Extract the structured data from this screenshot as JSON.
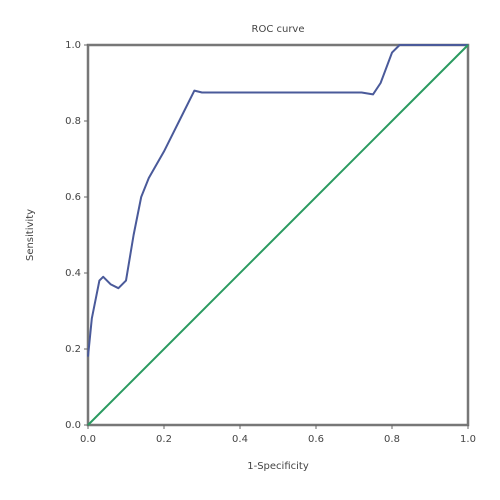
{
  "chart_data": {
    "type": "line",
    "title": "ROC curve",
    "xlabel": "1-Specificity",
    "ylabel": "Sensitivity",
    "series": [
      {
        "color": "#4a5a9a",
        "x": [
          0,
          0.01,
          0.03,
          0.04,
          0.06,
          0.08,
          0.1,
          0.12,
          0.14,
          0.16,
          0.2,
          0.24,
          0.28,
          0.3,
          0.5,
          0.72,
          0.75,
          0.77,
          0.8,
          0.82,
          1
        ],
        "values": [
          0.18,
          0.28,
          0.38,
          0.39,
          0.37,
          0.36,
          0.38,
          0.5,
          0.6,
          0.65,
          0.72,
          0.8,
          0.88,
          0.875,
          0.875,
          0.875,
          0.87,
          0.9,
          0.98,
          1,
          1
        ]
      },
      {
        "color": "#2a9a60",
        "x": [
          0,
          1
        ],
        "values": [
          0,
          1
        ]
      }
    ],
    "xlim": [
      0,
      1
    ],
    "ylim": [
      0,
      1
    ],
    "xticks": [
      {
        "value": 0,
        "label": "0.0"
      },
      0.2,
      0.4,
      0.6,
      0.8,
      {
        "value": 1,
        "label": "1.0"
      }
    ],
    "yticks": [
      {
        "value": 0,
        "label": "0.0"
      },
      0.2,
      0.4,
      0.6,
      0.8,
      {
        "value": 1,
        "label": "1.0"
      }
    ]
  }
}
